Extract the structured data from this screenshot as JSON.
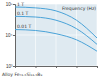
{
  "chart_data": {
    "type": "line",
    "xlabel": "Frequency (Hz)",
    "subtitle": "Alloy Fe₇₃.₅Si₁₃.₅B₉",
    "log": true,
    "grid": true,
    "tick_labels": "y",
    "xlim": [
      10,
      100000
    ],
    "xticks": [
      10,
      100,
      1000,
      10000,
      100000
    ],
    "ylim": [
      1000,
      100000
    ],
    "yticks": [
      {
        "value": 1000,
        "label": "10³"
      },
      {
        "value": 10000,
        "label": "10⁴"
      },
      {
        "value": 100000,
        "label": "10⁵"
      }
    ],
    "x": [
      10,
      100,
      1000,
      10000,
      100000
    ],
    "series": [
      {
        "name": "1 T",
        "color": "#4aa3d8",
        "values": [
          80000,
          75000,
          60000,
          30000,
          8000
        ]
      },
      {
        "name": "0.1 T",
        "color": "#4aa3d8",
        "values": [
          40000,
          38000,
          30000,
          16000,
          5000
        ]
      },
      {
        "name": "0.01 T",
        "color": "#4aa3d8",
        "values": [
          15000,
          14000,
          11000,
          7000,
          3000
        ]
      }
    ]
  }
}
